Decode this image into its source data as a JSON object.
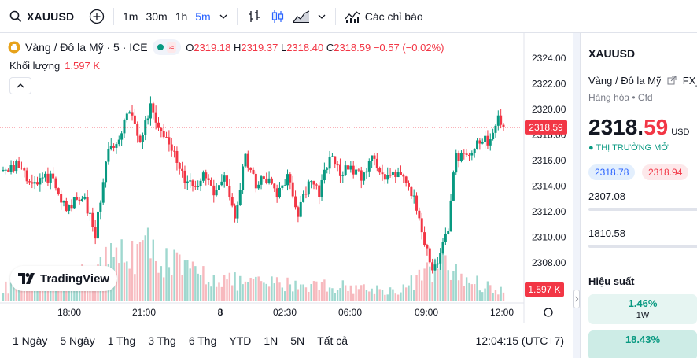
{
  "toolbar": {
    "symbol": "XAUUSD",
    "intervals": [
      "1m",
      "30m",
      "1h",
      "5m"
    ],
    "active_interval": "5m",
    "indicators_label": "Các chỉ báo"
  },
  "legend": {
    "title": "Vàng / Đô la Mỹ · 5 · ICE",
    "open_label": "O",
    "open": "2319.18",
    "high_label": "H",
    "high": "2319.37",
    "low_label": "L",
    "low": "2318.40",
    "close_label": "C",
    "close": "2318.59",
    "change": "−0.57 (−0.02%)",
    "volume_label": "Khối lượng",
    "volume_value": "1.597 K"
  },
  "logo_text": "TradingView",
  "bottom": {
    "ranges": [
      "1 Ngày",
      "5 Ngày",
      "1 Thg",
      "3 Thg",
      "6 Thg",
      "YTD",
      "1N",
      "5N",
      "Tất cả"
    ],
    "clock": "12:04:15 (UTC+7)"
  },
  "right_panel": {
    "symbol": "XAUUSD",
    "name": "Vàng / Đô la Mỹ",
    "source": "FX_",
    "category": "Hàng hóa",
    "category2": "Cfd",
    "price_int": "2318.",
    "price_dec": "59",
    "currency": "USD",
    "status": "THỊ TRƯỜNG MỞ",
    "bid": "2318.78",
    "ask": "2318.94",
    "value1": "2307.08",
    "value2": "1810.58",
    "performance_label": "Hiệu suất",
    "perf": [
      {
        "pct": "1.46%",
        "label": "1W"
      },
      {
        "pct": "18.43%",
        "label": ""
      }
    ]
  },
  "colors": {
    "up": "#089981",
    "down": "#f23645",
    "accent": "#2962ff",
    "up_volume": "#9fd8cf",
    "down_volume": "#f7b9be"
  },
  "chart_data": {
    "type": "candlestick",
    "title": "Vàng / Đô la Mỹ · 5 · ICE",
    "y_ticks": [
      2308.0,
      2310.0,
      2312.0,
      2314.0,
      2316.0,
      2318.0,
      2320.0,
      2322.0,
      2324.0
    ],
    "ylim": [
      2306.5,
      2324.5
    ],
    "x_ticks": [
      "18:00",
      "21:00",
      "8",
      "02:30",
      "06:00",
      "09:00",
      "12:00"
    ],
    "last_price": 2318.59,
    "last_volume": "1.597 K",
    "close_path": [
      {
        "t": 0,
        "v": 2315.2
      },
      {
        "t": 6,
        "v": 2315.6
      },
      {
        "t": 12,
        "v": 2314.0
      },
      {
        "t": 18,
        "v": 2314.8
      },
      {
        "t": 24,
        "v": 2312.3
      },
      {
        "t": 30,
        "v": 2313.4
      },
      {
        "t": 35,
        "v": 2310.2
      },
      {
        "t": 40,
        "v": 2317.2
      },
      {
        "t": 44,
        "v": 2317.5
      },
      {
        "t": 48,
        "v": 2320.0
      },
      {
        "t": 52,
        "v": 2317.3
      },
      {
        "t": 56,
        "v": 2320.2
      },
      {
        "t": 60,
        "v": 2318.3
      },
      {
        "t": 64,
        "v": 2317.2
      },
      {
        "t": 68,
        "v": 2314.9
      },
      {
        "t": 72,
        "v": 2313.8
      },
      {
        "t": 76,
        "v": 2314.9
      },
      {
        "t": 80,
        "v": 2313.2
      },
      {
        "t": 84,
        "v": 2314.8
      },
      {
        "t": 88,
        "v": 2311.7
      },
      {
        "t": 92,
        "v": 2316.5
      },
      {
        "t": 96,
        "v": 2314.1
      },
      {
        "t": 100,
        "v": 2314.6
      },
      {
        "t": 104,
        "v": 2313.3
      },
      {
        "t": 108,
        "v": 2314.7
      },
      {
        "t": 112,
        "v": 2312.0
      },
      {
        "t": 116,
        "v": 2314.2
      },
      {
        "t": 120,
        "v": 2313.6
      },
      {
        "t": 124,
        "v": 2316.4
      },
      {
        "t": 128,
        "v": 2315.0
      },
      {
        "t": 132,
        "v": 2315.6
      },
      {
        "t": 136,
        "v": 2314.6
      },
      {
        "t": 140,
        "v": 2316.2
      },
      {
        "t": 144,
        "v": 2314.8
      },
      {
        "t": 148,
        "v": 2315.2
      },
      {
        "t": 152,
        "v": 2314.8
      },
      {
        "t": 156,
        "v": 2313.0
      },
      {
        "t": 160,
        "v": 2309.8
      },
      {
        "t": 163,
        "v": 2307.6
      },
      {
        "t": 166,
        "v": 2308.6
      },
      {
        "t": 169,
        "v": 2310.9
      },
      {
        "t": 172,
        "v": 2316.5
      },
      {
        "t": 176,
        "v": 2316.0
      },
      {
        "t": 180,
        "v": 2317.3
      },
      {
        "t": 184,
        "v": 2317.6
      },
      {
        "t": 188,
        "v": 2319.2
      },
      {
        "t": 190,
        "v": 2318.6
      }
    ],
    "volume_path": [
      {
        "t": 0,
        "v": 18
      },
      {
        "t": 30,
        "v": 35
      },
      {
        "t": 45,
        "v": 65
      },
      {
        "t": 55,
        "v": 70
      },
      {
        "t": 70,
        "v": 40
      },
      {
        "t": 90,
        "v": 25
      },
      {
        "t": 120,
        "v": 22
      },
      {
        "t": 150,
        "v": 14
      },
      {
        "t": 160,
        "v": 35
      },
      {
        "t": 166,
        "v": 50
      },
      {
        "t": 175,
        "v": 30
      },
      {
        "t": 190,
        "v": 12
      }
    ],
    "candle_count": 191
  }
}
